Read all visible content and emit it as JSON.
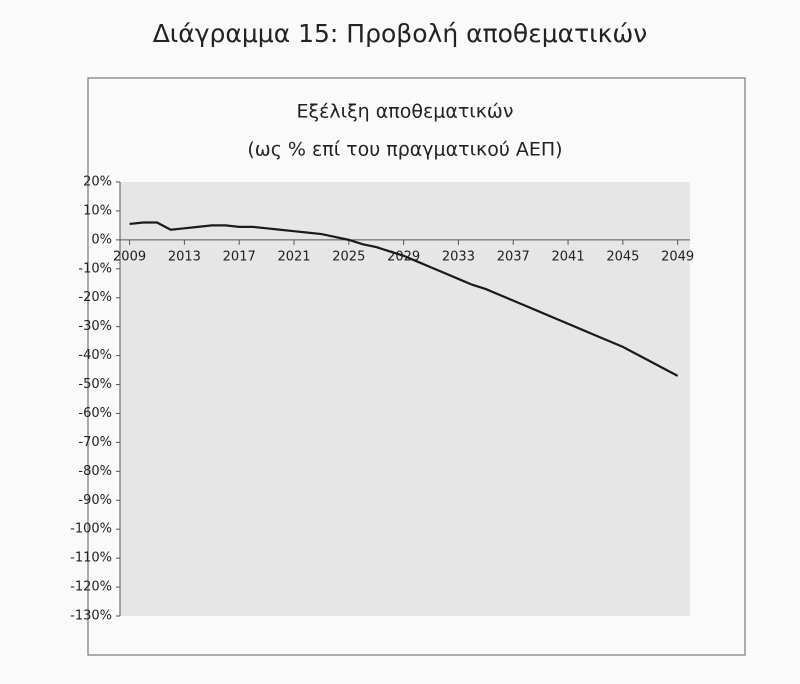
{
  "chart_data": {
    "type": "line",
    "title": "Διάγραμμα 15: Προβολή αποθεματικών",
    "subtitle": [
      "Εξέλιξη αποθεματικών",
      "(ως % επί του πραγματικού ΑΕΠ)"
    ],
    "x": [
      2009,
      2010,
      2011,
      2012,
      2013,
      2014,
      2015,
      2016,
      2017,
      2018,
      2019,
      2020,
      2021,
      2022,
      2023,
      2024,
      2025,
      2026,
      2027,
      2028,
      2029,
      2030,
      2031,
      2032,
      2033,
      2034,
      2035,
      2036,
      2037,
      2038,
      2039,
      2040,
      2041,
      2042,
      2043,
      2044,
      2045,
      2046,
      2047,
      2048,
      2049
    ],
    "series": [
      {
        "color": "#1a1a1a",
        "values": [
          5.5,
          6,
          6,
          3.5,
          4,
          4.5,
          5,
          5,
          4.5,
          4.5,
          4,
          3.5,
          3,
          2.5,
          2,
          1,
          0,
          -1.5,
          -2.5,
          -4,
          -5.5,
          -7.5,
          -9.5,
          -11.5,
          -13.5,
          -15.5,
          -17,
          -19,
          -21,
          -23,
          -25,
          -27,
          -29,
          -31,
          -33,
          -35,
          -37,
          -39.5,
          -42,
          -44.5,
          -47
        ]
      }
    ],
    "xlim": [
      2008.3,
      2049.9
    ],
    "xticks": [
      2009,
      2013,
      2017,
      2021,
      2025,
      2029,
      2033,
      2037,
      2041,
      2045,
      2049
    ],
    "ylim": [
      -130,
      20
    ],
    "yticks": [
      {
        "value": 20,
        "label": "20%"
      },
      {
        "value": 10,
        "label": "10%"
      },
      {
        "value": 0,
        "label": "0%"
      },
      {
        "value": -10,
        "label": "-10%"
      },
      {
        "value": -20,
        "label": "-20%"
      },
      {
        "value": -30,
        "label": "-30%"
      },
      {
        "value": -40,
        "label": "-40%"
      },
      {
        "value": -50,
        "label": "-50%"
      },
      {
        "value": -60,
        "label": "-60%"
      },
      {
        "value": -70,
        "label": "-70%"
      },
      {
        "value": -80,
        "label": "-80%"
      },
      {
        "value": -90,
        "label": "-90%"
      },
      {
        "value": -100,
        "label": "-100%"
      },
      {
        "value": -110,
        "label": "-110%"
      },
      {
        "value": -120,
        "label": "-120%"
      },
      {
        "value": -130,
        "label": "-130%"
      }
    ]
  }
}
